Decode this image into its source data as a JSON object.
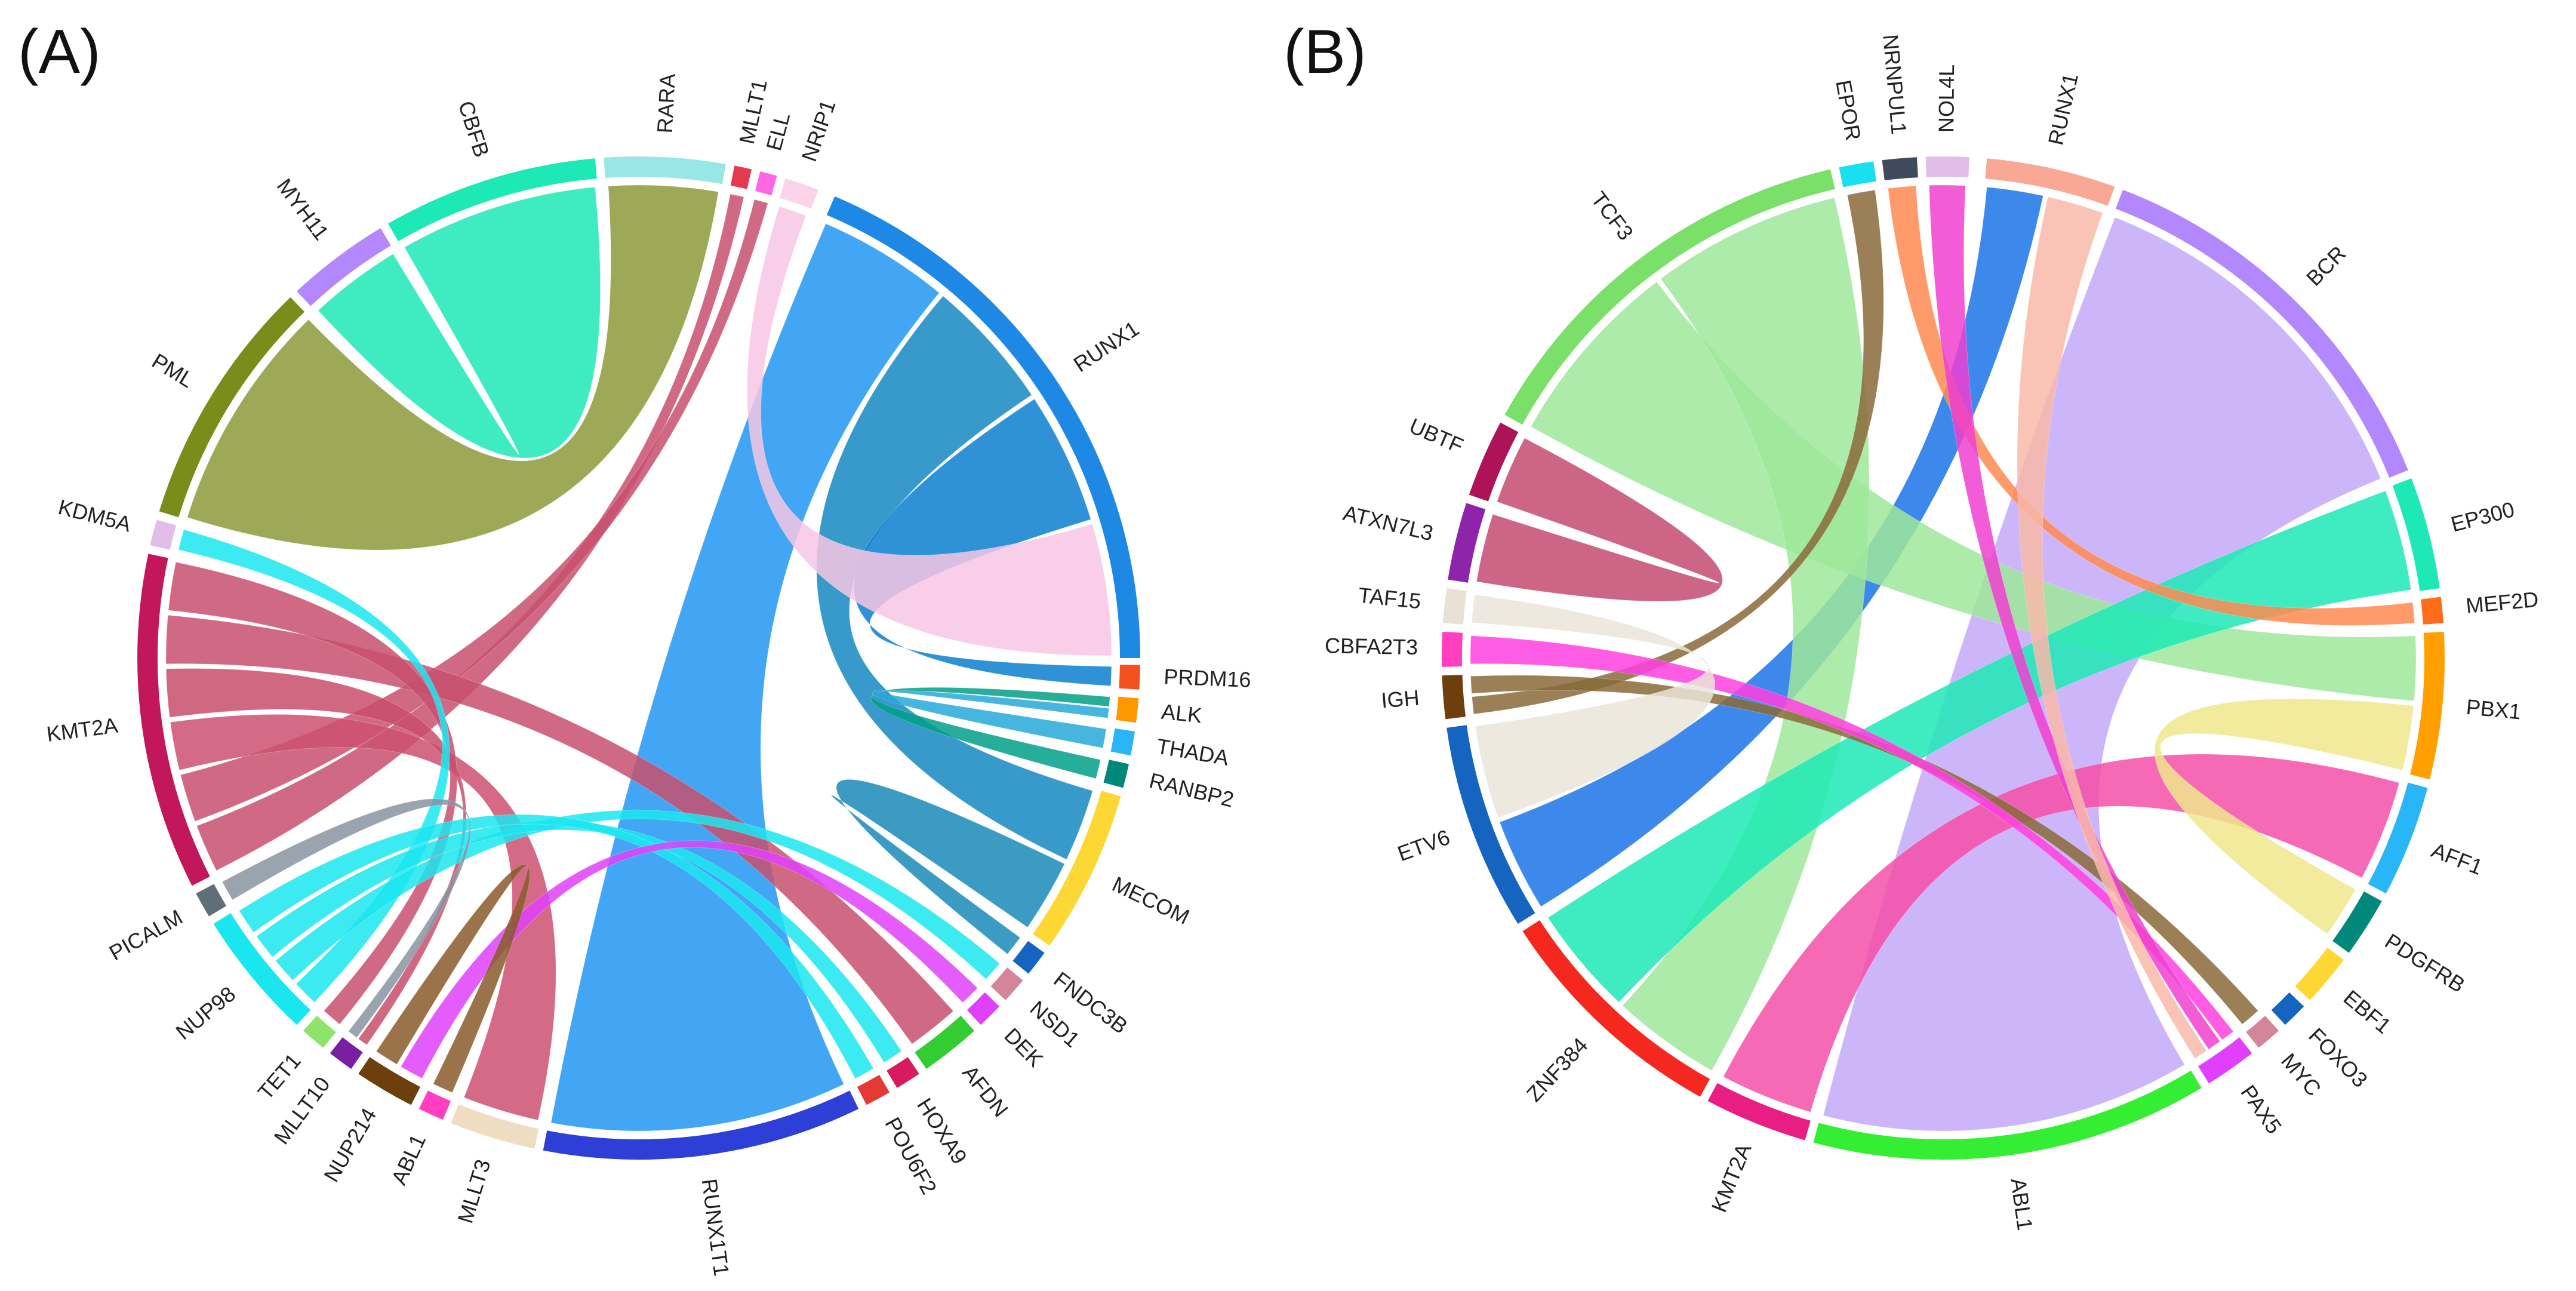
{
  "panels": [
    {
      "label": "(A)",
      "segments": [
        {
          "name": "RUNX1",
          "color": "#1e88e5"
        },
        {
          "name": "PRDM16",
          "color": "#f4511e"
        },
        {
          "name": "ALK",
          "color": "#ff9800"
        },
        {
          "name": "THADA",
          "color": "#29b6f6"
        },
        {
          "name": "RANBP2",
          "color": "#00897b"
        },
        {
          "name": "MECOM",
          "color": "#fdd835"
        },
        {
          "name": "FNDC3B",
          "color": "#1565c0"
        },
        {
          "name": "NSD1",
          "color": "#d4859a"
        },
        {
          "name": "DEK",
          "color": "#e040fb"
        },
        {
          "name": "AFDN",
          "color": "#33cc33"
        },
        {
          "name": "HOXA9",
          "color": "#d81b60"
        },
        {
          "name": "POU6F2",
          "color": "#e53935"
        },
        {
          "name": "RUNX1T1",
          "color": "#2d3fd6"
        },
        {
          "name": "MLLT3",
          "color": "#f0dcc0"
        },
        {
          "name": "ABL1",
          "color": "#ff3fbf"
        },
        {
          "name": "NUP214",
          "color": "#6d3f0c"
        },
        {
          "name": "MLLT10",
          "color": "#7b1fa2"
        },
        {
          "name": "TET1",
          "color": "#8ee36a"
        },
        {
          "name": "NUP98",
          "color": "#1ae6f0"
        },
        {
          "name": "PICALM",
          "color": "#5f6f78"
        },
        {
          "name": "KMT2A",
          "color": "#c2185b"
        },
        {
          "name": "KDM5A",
          "color": "#e1bee7"
        },
        {
          "name": "PML",
          "color": "#7a8c1a"
        },
        {
          "name": "MYH11",
          "color": "#b388ff"
        },
        {
          "name": "CBFB",
          "color": "#1de9b6"
        },
        {
          "name": "RARA",
          "color": "#99e6e6"
        },
        {
          "name": "MLLT1",
          "color": "#e53950"
        },
        {
          "name": "ELL",
          "color": "#ff66e6"
        },
        {
          "name": "NRIP1",
          "color": "#fbd4ea"
        }
      ],
      "links": [
        {
          "from": "RUNX1",
          "to": "RUNX1T1",
          "color": "#2196f3"
        },
        {
          "from": "RUNX1",
          "to": "MECOM",
          "color": "#1588c2"
        },
        {
          "from": "RUNX1",
          "to": "PRDM16",
          "color": "#0a7fd0"
        },
        {
          "from": "RANBP2",
          "to": "ALK",
          "color": "#00a088"
        },
        {
          "from": "THADA",
          "to": "ALK",
          "color": "#26a9d9"
        },
        {
          "from": "FNDC3B",
          "to": "MECOM",
          "color": "#1a89b8"
        },
        {
          "from": "RUNX1",
          "to": "NRIP1",
          "color": "#f7c6e4"
        },
        {
          "from": "PML",
          "to": "RARA",
          "color": "#8c9a3a"
        },
        {
          "from": "CBFB",
          "to": "MYH11",
          "color": "#1de9b6"
        },
        {
          "from": "KMT2A",
          "to": "MLLT1",
          "color": "#c8506e"
        },
        {
          "from": "KMT2A",
          "to": "ELL",
          "color": "#c8506e"
        },
        {
          "from": "KMT2A",
          "to": "MLLT3",
          "color": "#cc5070"
        },
        {
          "from": "KMT2A",
          "to": "MLLT10",
          "color": "#c94d6c"
        },
        {
          "from": "KMT2A",
          "to": "AFDN",
          "color": "#c8506e"
        },
        {
          "from": "KMT2A",
          "to": "TET1",
          "color": "#c8506e"
        },
        {
          "from": "NUP98",
          "to": "KDM5A",
          "color": "#1ae6f0"
        },
        {
          "from": "NUP98",
          "to": "NSD1",
          "color": "#1ae6f0"
        },
        {
          "from": "NUP98",
          "to": "HOXA9",
          "color": "#1ae6f0"
        },
        {
          "from": "NUP98",
          "to": "POU6F2",
          "color": "#1ae6f0"
        },
        {
          "from": "PICALM",
          "to": "MLLT10",
          "color": "#8794a0"
        },
        {
          "from": "DEK",
          "to": "NUP214",
          "color": "#e040fb"
        },
        {
          "from": "ABL1",
          "to": "NUP214",
          "color": "#8a5a2a"
        }
      ]
    },
    {
      "label": "(B)",
      "segments": [
        {
          "name": "RUNX1",
          "color": "#f8a894"
        },
        {
          "name": "BCR",
          "color": "#b388ff"
        },
        {
          "name": "EP300",
          "color": "#1de9b6"
        },
        {
          "name": "MEF2D",
          "color": "#ff6d1a"
        },
        {
          "name": "PBX1",
          "color": "#ffa000"
        },
        {
          "name": "AFF1",
          "color": "#29b6f6"
        },
        {
          "name": "PDGFRB",
          "color": "#00897b"
        },
        {
          "name": "EBF1",
          "color": "#fdd835"
        },
        {
          "name": "FOXO3",
          "color": "#1565c0"
        },
        {
          "name": "MYC",
          "color": "#d4859a"
        },
        {
          "name": "PAX5",
          "color": "#e040fb"
        },
        {
          "name": "ABL1",
          "color": "#33ee33"
        },
        {
          "name": "KMT2A",
          "color": "#e91e84"
        },
        {
          "name": "ZNF384",
          "color": "#f4281e"
        },
        {
          "name": "ETV6",
          "color": "#1565c0"
        },
        {
          "name": "IGH",
          "color": "#6d3f0c"
        },
        {
          "name": "CBFA2T3",
          "color": "#ff3fbf"
        },
        {
          "name": "TAF15",
          "color": "#e8e2d6"
        },
        {
          "name": "ATXN7L3",
          "color": "#8e24aa"
        },
        {
          "name": "UBTF",
          "color": "#ad1457"
        },
        {
          "name": "TCF3",
          "color": "#7be06a"
        },
        {
          "name": "EPOR",
          "color": "#18e0f0"
        },
        {
          "name": "NRNPUL1",
          "color": "#3f4a5c"
        },
        {
          "name": "NOL4L",
          "color": "#e1bee7"
        }
      ],
      "links": [
        {
          "from": "BCR",
          "to": "ABL1",
          "color": "#c4a8f8"
        },
        {
          "from": "ETV6",
          "to": "RUNX1",
          "color": "#1a73e8"
        },
        {
          "from": "TCF3",
          "to": "PBX1",
          "color": "#9ee89a"
        },
        {
          "from": "TCF3",
          "to": "ZNF384",
          "color": "#9ee89a"
        },
        {
          "from": "EP300",
          "to": "ZNF384",
          "color": "#1de9b6"
        },
        {
          "from": "KMT2A",
          "to": "AFF1",
          "color": "#f54fa8"
        },
        {
          "from": "PBX1",
          "to": "PDGFRB",
          "color": "#f0e68c"
        },
        {
          "from": "UBTF",
          "to": "ATXN7L3",
          "color": "#c44a72"
        },
        {
          "from": "IGH",
          "to": "EPOR",
          "color": "#8a6a3a"
        },
        {
          "from": "IGH",
          "to": "MYC",
          "color": "#8a6a3a"
        },
        {
          "from": "CBFA2T3",
          "to": "PAX5",
          "color": "#ff3fe0"
        },
        {
          "from": "TAF15",
          "to": "ETV6",
          "color": "#ebe5d8"
        },
        {
          "from": "NRNPUL1",
          "to": "MEF2D",
          "color": "#ff8a50"
        },
        {
          "from": "NOL4L",
          "to": "PAX5",
          "color": "#f040d0"
        },
        {
          "from": "RUNX1",
          "to": "PAX5",
          "color": "#f8b8a8"
        }
      ]
    }
  ]
}
